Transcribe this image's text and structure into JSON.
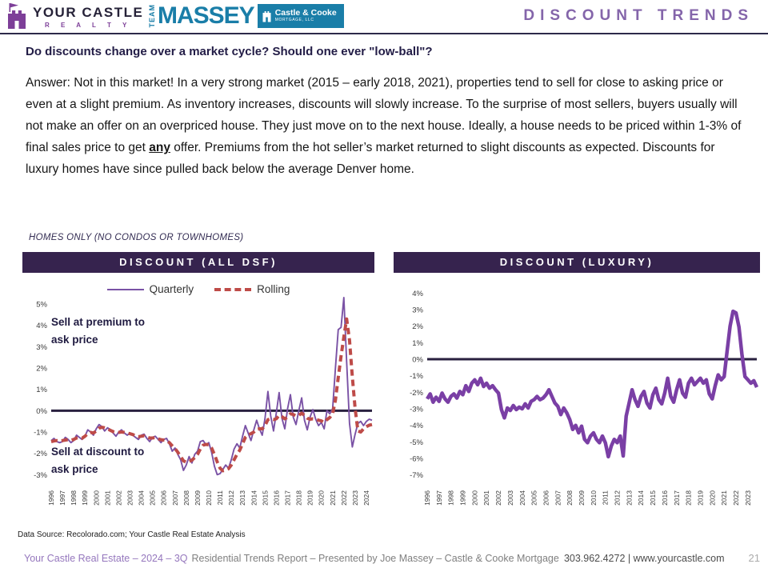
{
  "header": {
    "brand": {
      "name": "YOUR CASTLE",
      "sub": "R E A L T Y"
    },
    "massey": {
      "team": "TEAM",
      "name": "MASSEY",
      "badge_line1": "Castle & Cooke",
      "badge_line2": "MORTGAGE, LLC"
    },
    "title": "DISCOUNT TRENDS"
  },
  "question": "Do discounts change over a market cycle?  Should one ever \"low-ball\"?",
  "answer": {
    "part1": "Answer: Not in this market! In a very strong market (2015 – early 2018, 2021), properties tend to sell for close to asking price or even at a slight premium. As inventory increases, discounts will slowly increase. To the surprise of most sellers, buyers usually will not make an offer on an overpriced house. They just move on to the next house. Ideally, a house needs to be priced within 1-3% of final sales price to get ",
    "emphasis": "any",
    "part2": " offer. Premiums from the hot seller’s market returned to slight discounts as expected. Discounts for luxury homes have since pulled back below the average Denver home."
  },
  "section_label": "HOMES ONLY (NO CONDOS OR TOWNHOMES)",
  "colors": {
    "brand_purple": "#7d3f98",
    "title_purple": "#8465aa",
    "massey_teal": "#1a7ea8",
    "panel_bar": "#36234e",
    "dark_navy_text": "#221c46",
    "quarterly_line": "#7A52A5",
    "rolling_line": "#BE4B48",
    "luxury_line": "#7A3FA5",
    "zero_line": "#29203f"
  },
  "chart_data": [
    {
      "type": "line",
      "title": "DISCOUNT (ALL DSF)",
      "ylabel": "",
      "xlabel": "",
      "ylim": [
        -3.4,
        5.6
      ],
      "yticks": [
        5,
        4,
        3,
        2,
        1,
        0,
        -1,
        -2,
        -3
      ],
      "ytick_suffix": "%",
      "grid": false,
      "legend_position": "top",
      "zero_line": true,
      "zero_line_color": "#29203f",
      "annotations": [
        "Sell at premium to ask price",
        "Sell at discount to ask price"
      ],
      "points_per_year": 4,
      "years": [
        1996,
        1997,
        1998,
        1999,
        2000,
        2001,
        2002,
        2003,
        2004,
        2005,
        2006,
        2007,
        2008,
        2009,
        2010,
        2011,
        2012,
        2013,
        2014,
        2015,
        2016,
        2017,
        2018,
        2019,
        2020,
        2021,
        2022,
        2023,
        2024
      ],
      "series": [
        {
          "name": "Quarterly",
          "color": "#7A52A5",
          "width": 1.9,
          "dash": null,
          "values": [
            -1.4,
            -1.3,
            -1.45,
            -1.5,
            -1.45,
            -1.25,
            -1.35,
            -1.5,
            -1.4,
            -1.15,
            -1.25,
            -1.35,
            -1.2,
            -0.9,
            -1.0,
            -1.15,
            -0.85,
            -0.65,
            -0.75,
            -0.95,
            -0.8,
            -0.9,
            -1.05,
            -1.2,
            -1.0,
            -0.9,
            -1.05,
            -1.15,
            -1.05,
            -1.15,
            -1.25,
            -1.35,
            -1.15,
            -1.1,
            -1.3,
            -1.45,
            -1.25,
            -1.2,
            -1.35,
            -1.5,
            -1.35,
            -1.3,
            -1.55,
            -1.9,
            -1.75,
            -2.05,
            -2.3,
            -2.8,
            -2.55,
            -2.15,
            -2.45,
            -2.05,
            -1.9,
            -1.45,
            -1.4,
            -1.6,
            -1.5,
            -1.95,
            -2.6,
            -3.0,
            -2.95,
            -2.75,
            -2.55,
            -2.7,
            -2.3,
            -1.8,
            -1.55,
            -1.75,
            -1.2,
            -0.7,
            -1.05,
            -1.4,
            -0.9,
            -0.45,
            -0.85,
            -1.15,
            -0.35,
            0.9,
            -0.25,
            -0.95,
            -0.1,
            0.85,
            -0.35,
            -0.85,
            0.1,
            0.75,
            -0.3,
            -0.65,
            0.0,
            0.6,
            -0.45,
            -0.9,
            -0.3,
            0.05,
            -0.4,
            -0.7,
            -0.55,
            -0.85,
            0.0,
            -0.15,
            0.1,
            2.0,
            3.8,
            3.9,
            5.3,
            2.3,
            -0.6,
            -1.7,
            -1.1,
            -0.6,
            -0.5,
            -0.7,
            -0.5,
            -0.4,
            -0.45
          ]
        },
        {
          "name": "Rolling",
          "color": "#BE4B48",
          "width": 4,
          "dash": "8 5",
          "values": [
            -1.45,
            -1.42,
            -1.4,
            -1.42,
            -1.4,
            -1.38,
            -1.36,
            -1.39,
            -1.35,
            -1.28,
            -1.26,
            -1.29,
            -1.2,
            -1.08,
            -1.02,
            -1.05,
            -0.95,
            -0.82,
            -0.78,
            -0.8,
            -0.85,
            -0.92,
            -0.98,
            -1.02,
            -1.02,
            -1.0,
            -1.02,
            -1.05,
            -1.08,
            -1.12,
            -1.18,
            -1.22,
            -1.2,
            -1.18,
            -1.24,
            -1.28,
            -1.28,
            -1.26,
            -1.32,
            -1.36,
            -1.38,
            -1.4,
            -1.5,
            -1.65,
            -1.78,
            -1.95,
            -2.15,
            -2.35,
            -2.42,
            -2.38,
            -2.32,
            -2.2,
            -2.05,
            -1.8,
            -1.62,
            -1.58,
            -1.6,
            -1.75,
            -2.05,
            -2.4,
            -2.7,
            -2.82,
            -2.78,
            -2.72,
            -2.55,
            -2.3,
            -2.05,
            -1.85,
            -1.55,
            -1.25,
            -1.12,
            -1.08,
            -1.0,
            -0.88,
            -0.85,
            -0.85,
            -0.7,
            -0.42,
            -0.38,
            -0.42,
            -0.38,
            -0.22,
            -0.28,
            -0.38,
            -0.3,
            -0.15,
            -0.18,
            -0.25,
            -0.22,
            -0.12,
            -0.22,
            -0.35,
            -0.4,
            -0.38,
            -0.4,
            -0.45,
            -0.48,
            -0.55,
            -0.42,
            -0.32,
            -0.15,
            0.5,
            1.55,
            2.55,
            3.45,
            4.3,
            3.3,
            1.6,
            0.1,
            -0.95,
            -1.0,
            -0.85,
            -0.75,
            -0.68,
            -0.65
          ]
        }
      ]
    },
    {
      "type": "line",
      "title": "DISCOUNT (LUXURY)",
      "ylabel": "",
      "xlabel": "",
      "ylim": [
        -7.5,
        4.5
      ],
      "yticks": [
        4,
        3,
        2,
        1,
        0,
        -1,
        -2,
        -3,
        -4,
        -5,
        -6,
        -7
      ],
      "ytick_suffix": "%",
      "grid": false,
      "legend_position": "none",
      "zero_line": true,
      "zero_line_color": "#29203f",
      "points_per_year": 4,
      "years": [
        1996,
        1997,
        1998,
        1999,
        2000,
        2001,
        2002,
        2003,
        2004,
        2005,
        2006,
        2007,
        2008,
        2009,
        2010,
        2011,
        2012,
        2013,
        2014,
        2015,
        2016,
        2017,
        2018,
        2019,
        2020,
        2021,
        2022,
        2023
      ],
      "series": [
        {
          "name": "Quarterly",
          "color": "#7A3FA5",
          "width": 4.5,
          "dash": null,
          "values": [
            -2.4,
            -2.1,
            -2.6,
            -2.3,
            -2.55,
            -2.05,
            -2.4,
            -2.6,
            -2.25,
            -2.1,
            -2.35,
            -1.95,
            -2.15,
            -1.6,
            -1.95,
            -1.45,
            -1.25,
            -1.55,
            -1.15,
            -1.65,
            -1.45,
            -1.75,
            -1.6,
            -1.85,
            -2.05,
            -3.05,
            -3.55,
            -2.95,
            -3.1,
            -2.8,
            -3.05,
            -2.9,
            -3.0,
            -2.7,
            -2.95,
            -2.55,
            -2.45,
            -2.25,
            -2.45,
            -2.35,
            -2.15,
            -1.85,
            -2.25,
            -2.65,
            -2.85,
            -3.35,
            -2.95,
            -3.25,
            -3.65,
            -4.25,
            -4.0,
            -4.45,
            -4.05,
            -4.85,
            -5.05,
            -4.65,
            -4.45,
            -4.85,
            -5.05,
            -4.65,
            -5.05,
            -5.9,
            -5.25,
            -4.85,
            -5.05,
            -4.65,
            -5.85,
            -3.45,
            -2.65,
            -1.85,
            -2.45,
            -2.85,
            -2.25,
            -1.95,
            -2.65,
            -2.95,
            -2.15,
            -1.75,
            -2.45,
            -2.7,
            -2.05,
            -1.15,
            -2.25,
            -2.6,
            -1.85,
            -1.25,
            -2.05,
            -2.3,
            -1.45,
            -1.15,
            -1.55,
            -1.35,
            -1.15,
            -1.45,
            -1.25,
            -2.1,
            -2.4,
            -1.6,
            -0.95,
            -1.25,
            -1.05,
            0.5,
            2.0,
            2.9,
            2.8,
            1.95,
            0.3,
            -1.05,
            -1.25,
            -1.45,
            -1.3,
            -1.7
          ]
        }
      ]
    }
  ],
  "footer": {
    "data_source": "Data Source: Recolorado.com; Your Castle Real Estate Analysis",
    "brand_part": "Your Castle Real Estate – 2024 – 3Q",
    "report_part": "Residential Trends Report – Presented by Joe Massey – Castle & Cooke Mortgage",
    "contact": "303.962.4272 | www.yourcastle.com",
    "page": "21"
  }
}
